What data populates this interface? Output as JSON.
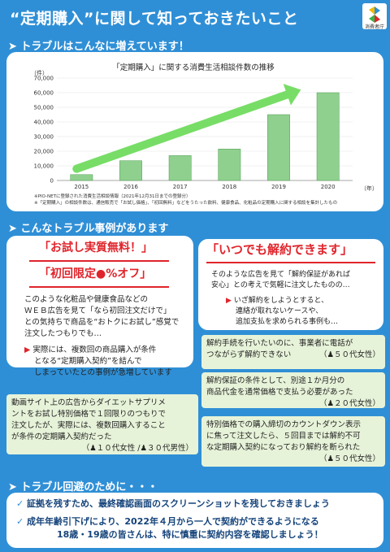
{
  "header": {
    "title": "“定期購入”に関して知っておきたいこと",
    "logo_text": "消費者庁"
  },
  "sections": {
    "s1": "トラブルはこんなに増えています！",
    "s2": "こんなトラブル事例があります",
    "s3": "トラブル回避のために・・・"
  },
  "chart_data": {
    "type": "bar",
    "title": "「定期購入」に関する消費生活相談件数の推移",
    "unit_label": "（件）",
    "x_unit": "（年）",
    "categories": [
      "2015",
      "2016",
      "2017",
      "2018",
      "2019",
      "2020"
    ],
    "values": [
      4000,
      13500,
      17000,
      21500,
      45000,
      60000
    ],
    "ylim": [
      0,
      70000
    ],
    "yticks": [
      "0",
      "10,000",
      "20,000",
      "30,000",
      "40,000",
      "50,000",
      "60,000",
      "70,000"
    ],
    "bar_color": "#8fd08f",
    "arrow_color": "#77dd66",
    "notes": [
      "※PIO-NETに登録された消費生活相談情報（2021年12月31日までの登録分）",
      "※「定期購入」の相談件数は、通信販売で「お試し価格」、「初回無料」などをうたった飲料、健康食品、化粧品の定期購入に関する相談を集計したもの"
    ]
  },
  "case_left": {
    "heading1": "「お試し実質無料！」",
    "heading2": "「初回限定●%オフ」",
    "body": [
      "このような化粧品や健康食品などの",
      "ＷＥＢ広告を見て「なら初回注文だけで」",
      "との気持ちで商品を“おトクにお試し”感覚で",
      "注文したつもりでも…"
    ],
    "bullet": [
      "実際には、複数回の商品購入が条件",
      "となる“定期購入契約”を結んで",
      "しまっていたとの事例が急増しています"
    ]
  },
  "case_right": {
    "heading": "「いつでも解約できます」",
    "body": [
      "そのような広告を見て「解約保証があれば",
      "安心」との考えで気軽に注文したものの…"
    ],
    "bullet": [
      "いざ解約をしようとすると、",
      "連絡が取れないケースや、",
      "追加支払を求められる事例も…"
    ]
  },
  "notes": [
    {
      "lines": [
        "解約手続を行いたいのに、事業者に電話が",
        "つながらず解約できない"
      ],
      "who": "（♟５０代女性）"
    },
    {
      "lines": [
        "解約保証の条件として、別途１か月分の",
        "商品代金を通常価格で支払う必要があった"
      ],
      "who": "（♟２０代女性）"
    },
    {
      "lines": [
        "特別価格での購入締切のカウントダウン表示",
        "に焦って注文したら、５回目までは解約不可",
        "な定期購入契約になっており解約を断られた"
      ],
      "who": "（♟５０代女性）"
    }
  ],
  "left_quote": {
    "lines": [
      "動画サイト上の広告からダイエットサプリメ",
      "ントをお試し特別価格で１回限りのつもりで",
      "注文したが、実際には、複数回購入すること",
      "が条件の定期購入契約だった"
    ],
    "who": "（♟１０代女性 /♟３０代男性）"
  },
  "tips": [
    "証拠を残すため、最終確認画面のスクリーンショットを残しておきましょう",
    "成年年齢引下げにより、2022年４月から一人で契約ができるようになる",
    "18歳・19歳の皆さんは、特に慎重に契約内容を確認しましょう！"
  ],
  "colors": {
    "background": "#2f8fd6",
    "accent_red": "#e0242b",
    "navy": "#14437a"
  }
}
